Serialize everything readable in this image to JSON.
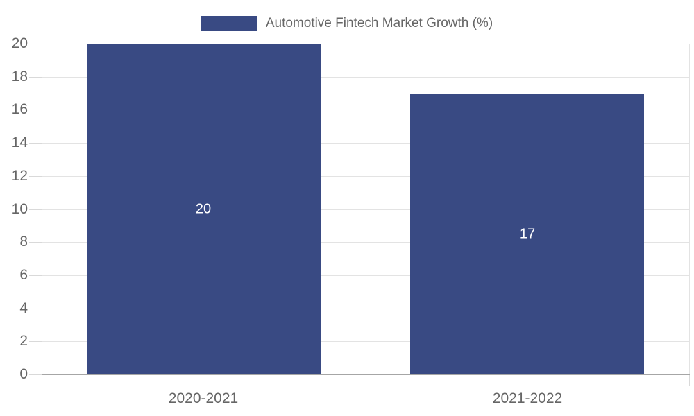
{
  "chart_data": {
    "type": "bar",
    "title": "Automotive Fintech Market Growth (%)",
    "legend_position": "top",
    "categories": [
      "2020-2021",
      "2021-2022"
    ],
    "series": [
      {
        "name": "Automotive Fintech Market Growth (%)",
        "values": [
          20,
          17
        ]
      }
    ],
    "data_labels": [
      "20",
      "17"
    ],
    "ylim": [
      0,
      20
    ],
    "yticks": [
      0,
      2,
      4,
      6,
      8,
      10,
      12,
      14,
      16,
      18,
      20
    ],
    "grid": true,
    "colors": {
      "bar": "#394A83",
      "value_label": "#FFFFFF",
      "axis_line": "#A6A6A6",
      "grid_line": "#E3E3E3",
      "tick_line": "#D9D9D9",
      "text": "#666666",
      "background": "#FFFFFF"
    }
  }
}
